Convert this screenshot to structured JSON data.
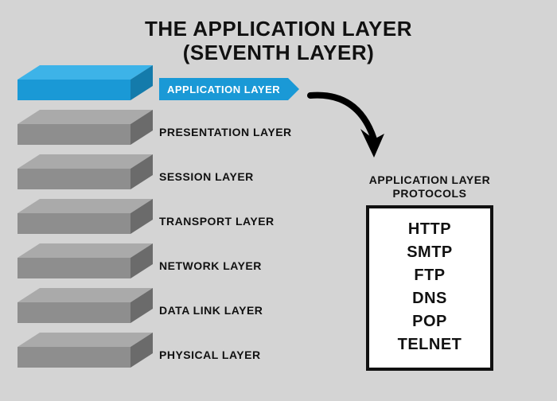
{
  "title_line1": "THE APPLICATION LAYER",
  "title_line2": "(SEVENTH LAYER)",
  "background_color": "#d4d4d4",
  "highlight_color": "#1a99d6",
  "highlight_color_dark": "#147bab",
  "highlight_color_light": "#3db3e8",
  "slab_color": "#8e8e8e",
  "slab_color_dark": "#6b6b6b",
  "slab_color_light": "#aaaaaa",
  "text_color": "#111111",
  "layers": [
    {
      "label": "APPLICATION LAYER",
      "highlighted": true
    },
    {
      "label": "PRESENTATION LAYER",
      "highlighted": false
    },
    {
      "label": "SESSION LAYER",
      "highlighted": false
    },
    {
      "label": "TRANSPORT LAYER",
      "highlighted": false
    },
    {
      "label": "NETWORK LAYER",
      "highlighted": false
    },
    {
      "label": "DATA LINK LAYER",
      "highlighted": false
    },
    {
      "label": "PHYSICAL LAYER",
      "highlighted": false
    }
  ],
  "protocols_title_line1": "APPLICATION LAYER",
  "protocols_title_line2": "PROTOCOLS",
  "protocols": [
    "HTTP",
    "SMTP",
    "FTP",
    "DNS",
    "POP",
    "TELNET"
  ],
  "box_border_color": "#111111",
  "box_bg_color": "#ffffff",
  "arrow_color": "#000000"
}
